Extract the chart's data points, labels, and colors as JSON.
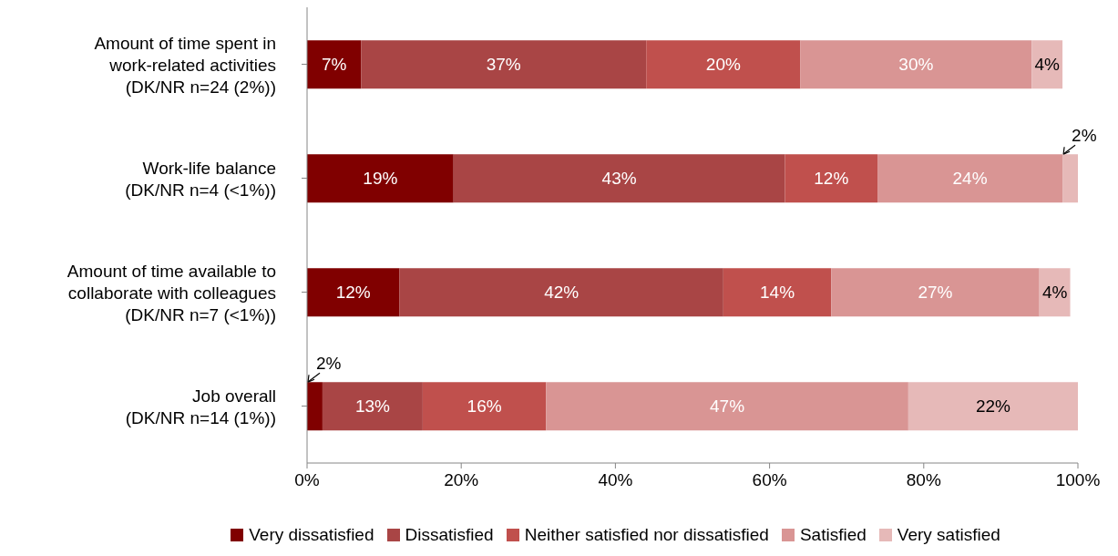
{
  "chart_data": {
    "type": "bar",
    "orientation": "horizontal",
    "stacked": true,
    "legend": "bottom",
    "categories": [
      "Amount of time spent in\nwork-related activities\n(DK/NR n=24 (2%))",
      "Work-life balance\n(DK/NR n=4 (<1%))",
      "Amount of time available to\ncollaborate with colleagues\n(DK/NR n=7 (<1%))",
      "Job overall\n(DK/NR n=14 (1%))"
    ],
    "xlim": [
      0,
      100
    ],
    "xticks": [
      {
        "value": 0,
        "label": "0%"
      },
      {
        "value": 20,
        "label": "20%"
      },
      {
        "value": 40,
        "label": "40%"
      },
      {
        "value": 60,
        "label": "60%"
      },
      {
        "value": 80,
        "label": "80%"
      },
      {
        "value": 100,
        "label": "100%"
      }
    ],
    "series": [
      {
        "name": "Very dissatisfied",
        "color": "#800000",
        "values": [
          7,
          19,
          12,
          2
        ],
        "value_labels": [
          "7%",
          "19%",
          "12%",
          "2%"
        ]
      },
      {
        "name": "Dissatisfied",
        "color": "#a94545",
        "values": [
          37,
          43,
          42,
          13
        ],
        "value_labels": [
          "37%",
          "43%",
          "42%",
          "13%"
        ]
      },
      {
        "name": "Neither satisfied nor dissatisfied",
        "color": "#c0504d",
        "values": [
          20,
          12,
          14,
          16
        ],
        "value_labels": [
          "20%",
          "12%",
          "14%",
          "16%"
        ]
      },
      {
        "name": "Satisfied",
        "color": "#d99594",
        "values": [
          30,
          24,
          27,
          47
        ],
        "value_labels": [
          "30%",
          "24%",
          "27%",
          "47%"
        ]
      },
      {
        "name": "Very satisfied",
        "color": "#e6b9b8",
        "values": [
          4,
          2,
          4,
          22
        ],
        "value_labels": [
          "4%",
          "2%",
          "4%",
          "22%"
        ]
      }
    ]
  }
}
